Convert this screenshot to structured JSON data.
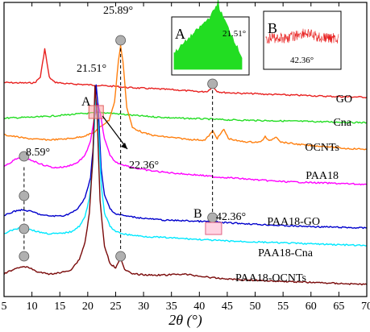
{
  "chart_data": {
    "type": "line",
    "xlabel": "2θ (°)",
    "xlim": [
      5,
      70
    ],
    "xticks": [
      5,
      10,
      15,
      20,
      25,
      30,
      35,
      40,
      45,
      50,
      55,
      60,
      65,
      70
    ],
    "y_axis": "no scale, curves stacked vertically",
    "grid": false,
    "series": [
      {
        "name": "GO",
        "color": "#e8201f",
        "label": "GO",
        "points": [
          [
            5,
            1.3
          ],
          [
            7,
            1.28
          ],
          [
            9,
            1.26
          ],
          [
            10.5,
            1.28
          ],
          [
            11.5,
            1.8
          ],
          [
            12.3,
            4.4
          ],
          [
            13.1,
            1.8
          ],
          [
            14,
            1.35
          ],
          [
            16,
            1.2
          ],
          [
            18,
            1.15
          ],
          [
            20,
            1.1
          ],
          [
            21.5,
            1.05
          ],
          [
            23,
            1.0
          ],
          [
            25,
            0.95
          ],
          [
            27,
            0.85
          ],
          [
            29,
            0.8
          ],
          [
            31,
            0.75
          ],
          [
            33,
            0.7
          ],
          [
            35,
            0.65
          ],
          [
            37,
            0.58
          ],
          [
            39,
            0.5
          ],
          [
            40.5,
            0.45
          ],
          [
            41.5,
            0.5
          ],
          [
            42.36,
            0.95
          ],
          [
            43.2,
            0.5
          ],
          [
            44,
            0.4
          ],
          [
            46,
            0.35
          ],
          [
            48,
            0.3
          ],
          [
            50,
            0.28
          ],
          [
            52,
            0.22
          ],
          [
            54,
            0.2
          ],
          [
            56,
            0.15
          ],
          [
            58,
            0.13
          ],
          [
            60,
            0.1
          ],
          [
            62,
            0.05
          ],
          [
            64,
            0.02
          ],
          [
            66,
            0.0
          ],
          [
            68,
            -0.02
          ],
          [
            70,
            -0.05
          ]
        ]
      },
      {
        "name": "Cna",
        "color": "#22dd22",
        "label": "Cna",
        "points": [
          [
            5,
            0.1
          ],
          [
            8,
            0.15
          ],
          [
            11,
            0.2
          ],
          [
            14,
            0.3
          ],
          [
            17,
            0.42
          ],
          [
            19,
            0.5
          ],
          [
            21,
            0.55
          ],
          [
            22.36,
            0.6
          ],
          [
            24,
            0.55
          ],
          [
            26,
            0.45
          ],
          [
            28,
            0.35
          ],
          [
            30,
            0.28
          ],
          [
            33,
            0.18
          ],
          [
            36,
            0.1
          ],
          [
            40,
            0.05
          ],
          [
            45,
            -0.05
          ],
          [
            50,
            -0.1
          ],
          [
            55,
            -0.15
          ],
          [
            60,
            -0.2
          ],
          [
            65,
            -0.25
          ],
          [
            70,
            -0.3
          ]
        ]
      },
      {
        "name": "OCNTs",
        "color": "#ff7f0e",
        "label": "OCNTs",
        "points": [
          [
            5,
            0.7
          ],
          [
            7,
            0.6
          ],
          [
            9,
            0.5
          ],
          [
            11,
            0.45
          ],
          [
            13,
            0.42
          ],
          [
            15,
            0.45
          ],
          [
            17,
            0.5
          ],
          [
            19,
            0.6
          ],
          [
            21,
            0.8
          ],
          [
            22.5,
            1.2
          ],
          [
            23.8,
            1.5
          ],
          [
            24.8,
            2.5
          ],
          [
            25.5,
            4.8
          ],
          [
            25.89,
            5.6
          ],
          [
            26.3,
            4.8
          ],
          [
            27,
            2.2
          ],
          [
            28,
            1.1
          ],
          [
            30,
            0.8
          ],
          [
            32,
            0.65
          ],
          [
            35,
            0.55
          ],
          [
            38,
            0.45
          ],
          [
            41,
            0.4
          ],
          [
            42.4,
            0.9
          ],
          [
            43.2,
            0.5
          ],
          [
            44.4,
            1.0
          ],
          [
            45.2,
            0.5
          ],
          [
            47,
            0.35
          ],
          [
            49,
            0.3
          ],
          [
            51,
            0.3
          ],
          [
            51.8,
            0.6
          ],
          [
            52.5,
            0.35
          ],
          [
            53.8,
            0.6
          ],
          [
            54.6,
            0.3
          ],
          [
            57,
            0.2
          ],
          [
            60,
            0.1
          ],
          [
            63,
            0.05
          ],
          [
            66,
            -0.05
          ],
          [
            70,
            -0.1
          ]
        ]
      },
      {
        "name": "PAA18",
        "color": "#ff00ff",
        "label": "PAA18",
        "points": [
          [
            5,
            1.0
          ],
          [
            6,
            1.2
          ],
          [
            7,
            1.4
          ],
          [
            8.59,
            1.5
          ],
          [
            10,
            1.35
          ],
          [
            12,
            1.1
          ],
          [
            14,
            0.95
          ],
          [
            16,
            1.0
          ],
          [
            18,
            1.2
          ],
          [
            19.5,
            1.6
          ],
          [
            20.5,
            2.4
          ],
          [
            21.3,
            3.8
          ],
          [
            21.8,
            4.4
          ],
          [
            22.3,
            3.8
          ],
          [
            23,
            2.5
          ],
          [
            24,
            1.6
          ],
          [
            25,
            1.25
          ],
          [
            27,
            1.05
          ],
          [
            29,
            0.9
          ],
          [
            31,
            0.8
          ],
          [
            34,
            0.7
          ],
          [
            37,
            0.62
          ],
          [
            40,
            0.55
          ],
          [
            43,
            0.45
          ],
          [
            46,
            0.4
          ],
          [
            50,
            0.3
          ],
          [
            55,
            0.2
          ],
          [
            60,
            0.15
          ],
          [
            65,
            0.1
          ],
          [
            70,
            0.05
          ]
        ]
      },
      {
        "name": "PAA18-GO",
        "color": "#0000cc",
        "label": "PAA18-GO",
        "points": [
          [
            5,
            0.8
          ],
          [
            6,
            1.0
          ],
          [
            7.5,
            1.2
          ],
          [
            8.5,
            1.2
          ],
          [
            10,
            1.1
          ],
          [
            12,
            0.85
          ],
          [
            14,
            0.8
          ],
          [
            16,
            0.85
          ],
          [
            18,
            1.2
          ],
          [
            19.5,
            2.0
          ],
          [
            20.5,
            3.4
          ],
          [
            21.0,
            5.5
          ],
          [
            21.51,
            9.6
          ],
          [
            21.9,
            8.0
          ],
          [
            22.4,
            4.0
          ],
          [
            23,
            2.2
          ],
          [
            24,
            1.3
          ],
          [
            25,
            0.95
          ],
          [
            27,
            0.8
          ],
          [
            29,
            0.7
          ],
          [
            31,
            0.62
          ],
          [
            34,
            0.52
          ],
          [
            37,
            0.5
          ],
          [
            40,
            0.45
          ],
          [
            42.36,
            0.42
          ],
          [
            45,
            0.35
          ],
          [
            48,
            0.3
          ],
          [
            52,
            0.22
          ],
          [
            56,
            0.15
          ],
          [
            60,
            0.1
          ],
          [
            65,
            0.05
          ],
          [
            70,
            0.0
          ]
        ]
      },
      {
        "name": "PAA18-Cna",
        "color": "#00e8ff",
        "label": "PAA18-Cna",
        "points": [
          [
            5,
            0.7
          ],
          [
            6.5,
            0.9
          ],
          [
            8,
            1.0
          ],
          [
            9.5,
            0.95
          ],
          [
            11,
            0.8
          ],
          [
            13,
            0.7
          ],
          [
            15,
            0.7
          ],
          [
            17,
            0.8
          ],
          [
            18.5,
            1.1
          ],
          [
            19.5,
            1.6
          ],
          [
            20.3,
            2.6
          ],
          [
            20.9,
            4.5
          ],
          [
            21.4,
            8.0
          ],
          [
            21.9,
            6.5
          ],
          [
            22.4,
            3.4
          ],
          [
            23,
            1.8
          ],
          [
            24,
            1.1
          ],
          [
            25,
            0.8
          ],
          [
            27,
            0.65
          ],
          [
            30,
            0.55
          ],
          [
            33,
            0.5
          ],
          [
            36,
            0.45
          ],
          [
            39,
            0.4
          ],
          [
            42,
            0.35
          ],
          [
            45,
            0.3
          ],
          [
            50,
            0.25
          ],
          [
            55,
            0.2
          ],
          [
            60,
            0.15
          ],
          [
            65,
            0.1
          ],
          [
            70,
            0.05
          ]
        ]
      },
      {
        "name": "PAA18-OCNTs",
        "color": "#7a0a0a",
        "label": "PAA18-OCNTs",
        "points": [
          [
            5,
            0.5
          ],
          [
            6.5,
            0.7
          ],
          [
            8,
            0.85
          ],
          [
            9.5,
            0.8
          ],
          [
            11,
            0.6
          ],
          [
            13,
            0.5
          ],
          [
            15,
            0.55
          ],
          [
            17,
            0.7
          ],
          [
            18.5,
            1.2
          ],
          [
            19.5,
            2.0
          ],
          [
            20.3,
            3.4
          ],
          [
            20.9,
            6.0
          ],
          [
            21.3,
            9.5
          ],
          [
            21.7,
            8.0
          ],
          [
            22.2,
            4.0
          ],
          [
            23,
            1.8
          ],
          [
            24,
            1.0
          ],
          [
            25,
            0.8
          ],
          [
            25.89,
            1.3
          ],
          [
            26.6,
            0.7
          ],
          [
            28,
            0.5
          ],
          [
            31,
            0.45
          ],
          [
            34,
            0.45
          ],
          [
            37,
            0.5
          ],
          [
            40,
            0.4
          ],
          [
            43,
            0.3
          ],
          [
            46,
            0.25
          ],
          [
            50,
            0.2
          ],
          [
            55,
            0.15
          ],
          [
            60,
            0.1
          ],
          [
            65,
            0.05
          ],
          [
            70,
            0.0
          ]
        ]
      }
    ],
    "peak_labels": [
      {
        "text": "25.89°",
        "x": 25.89,
        "series": "OCNTs"
      },
      {
        "text": "21.51°",
        "x": 21.51,
        "series": "PAA18-GO"
      },
      {
        "text": "8.59°",
        "x": 8.59,
        "series": "PAA18"
      },
      {
        "text": "22.36°",
        "x": 22.36,
        "series": "Cna"
      },
      {
        "text": "42.36°",
        "x": 42.36,
        "series": "PAA18-GO"
      },
      {
        "text": "A",
        "x": 21.5
      },
      {
        "text": "B",
        "x": 42.4
      }
    ],
    "inset_a": {
      "title": "A",
      "label": "21.51°",
      "color": "#22dd22"
    },
    "inset_b": {
      "title": "B",
      "label": "42.36°",
      "color": "#e8201f"
    }
  }
}
